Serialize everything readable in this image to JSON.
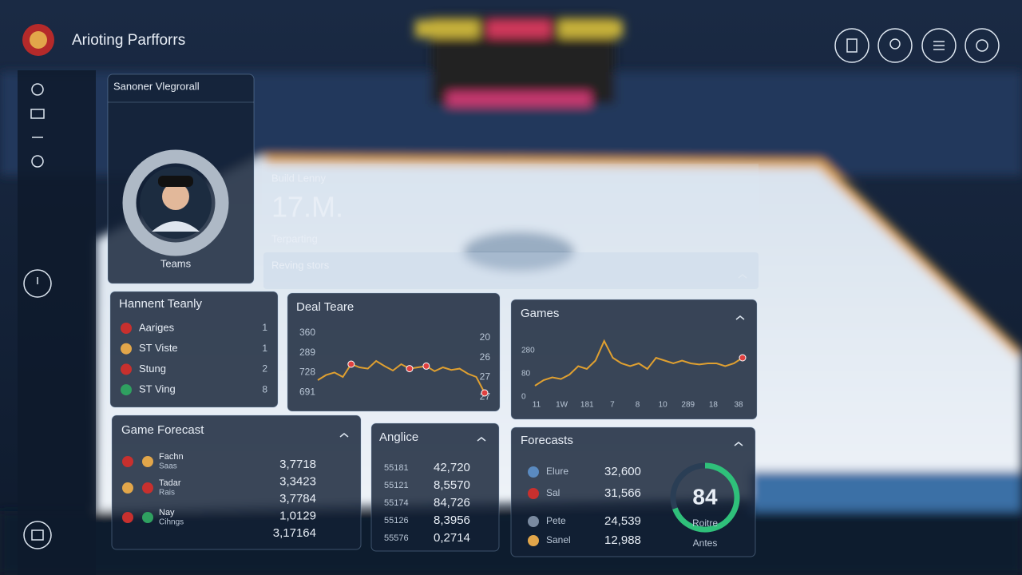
{
  "header": {
    "title": "Arioting Parfforrs"
  },
  "profile": {
    "title": "Sanoner Vlegrorall",
    "label": "Teams"
  },
  "stat": {
    "title": "Build Lenny",
    "value": "17.M.",
    "subtitle": "Terparting",
    "bar": "Reving stors"
  },
  "teams": {
    "title": "Hannent Teanly",
    "rows": [
      [
        "Aariges",
        "1"
      ],
      [
        "ST Viste",
        "1"
      ],
      [
        "Stung",
        "2"
      ],
      [
        "ST Ving",
        "8"
      ]
    ]
  },
  "deal": {
    "title": "Deal Teare",
    "left_ticks": [
      "360",
      "289",
      "728",
      "691"
    ],
    "right_ticks": [
      "20",
      "26",
      "27",
      "27"
    ],
    "ylim": [
      0,
      100
    ],
    "values": [
      30,
      38,
      42,
      35,
      55,
      50,
      48,
      60,
      52,
      45,
      55,
      48,
      50,
      52,
      44,
      50,
      46,
      48,
      40,
      35,
      10
    ]
  },
  "games": {
    "title": "Games",
    "y_labels": [
      "280",
      "80",
      "0"
    ],
    "x_labels": [
      "11",
      "1W",
      "181",
      "7",
      "8",
      "10",
      "289",
      "18",
      "38"
    ],
    "ylim": [
      0,
      100
    ],
    "values": [
      10,
      20,
      25,
      22,
      30,
      45,
      40,
      55,
      90,
      60,
      50,
      45,
      50,
      40,
      60,
      55,
      50,
      55,
      50,
      48,
      50,
      50,
      45,
      50,
      60
    ]
  },
  "forecast": {
    "title": "Game Forecast",
    "rows": [
      [
        "Fachn",
        "Saas"
      ],
      [
        "Tadar",
        "Rais"
      ],
      [
        "Nay",
        "Cihngs"
      ]
    ],
    "numbers": [
      "3,7718",
      "3,3423",
      "3,7784",
      "1,0129",
      "3,17164"
    ]
  },
  "anglice": {
    "title": "Anglice",
    "rows": [
      [
        "55181",
        "42,720"
      ],
      [
        "55121",
        "8,5570"
      ],
      [
        "55174",
        "84,726"
      ],
      [
        "55126",
        "8,3956"
      ],
      [
        "55576",
        "0,2714"
      ]
    ]
  },
  "forecasts": {
    "title": "Forecasts",
    "rows": [
      [
        "Elure",
        "32,600"
      ],
      [
        "Sal",
        "31,566"
      ],
      [
        "Pete",
        "24,539"
      ],
      [
        "Sanel",
        "12,988"
      ]
    ],
    "gauge": "84",
    "gauge_label": "Roitre",
    "gauge_sub": "Antes"
  }
}
